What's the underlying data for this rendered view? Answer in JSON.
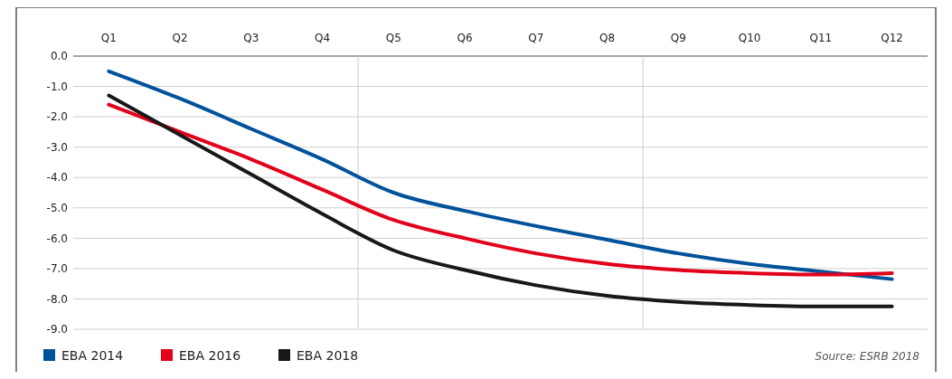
{
  "chart_data": {
    "type": "line",
    "categories": [
      "Q1",
      "Q2",
      "Q3",
      "Q4",
      "Q5",
      "Q6",
      "Q7",
      "Q8",
      "Q9",
      "Q10",
      "Q11",
      "Q12"
    ],
    "series": [
      {
        "name": "EBA 2014",
        "color": "#00529b",
        "values": [
          -0.5,
          -1.4,
          -2.4,
          -3.4,
          -4.5,
          -5.1,
          -5.6,
          -6.05,
          -6.5,
          -6.85,
          -7.1,
          -7.35
        ]
      },
      {
        "name": "EBA 2016",
        "color": "#e2001a",
        "values": [
          -1.6,
          -2.5,
          -3.4,
          -4.4,
          -5.4,
          -6.0,
          -6.5,
          -6.85,
          -7.05,
          -7.15,
          -7.2,
          -7.15
        ]
      },
      {
        "name": "EBA 2018",
        "color": "#1a171b",
        "values": [
          -1.3,
          -2.6,
          -3.9,
          -5.2,
          -6.4,
          -7.05,
          -7.55,
          -7.9,
          -8.1,
          -8.2,
          -8.25,
          -8.25
        ]
      }
    ],
    "ylim": [
      -9,
      0
    ],
    "yticks": [
      {
        "value": 0,
        "label": "0.0"
      },
      {
        "value": -1,
        "label": "-1.0"
      },
      {
        "value": -2,
        "label": "-2.0"
      },
      {
        "value": -3,
        "label": "-3.0"
      },
      {
        "value": -4,
        "label": "-4.0"
      },
      {
        "value": -5,
        "label": "-5.0"
      },
      {
        "value": -6,
        "label": "-6.0"
      },
      {
        "value": -7,
        "label": "-7.0"
      },
      {
        "value": -8,
        "label": "-8.0"
      },
      {
        "value": -9,
        "label": "-9.0"
      }
    ],
    "grid": "y",
    "legend": "bottom left",
    "marker": "none",
    "line_style": "solid",
    "annotations": [
      "Source: ESRB 2018"
    ]
  }
}
